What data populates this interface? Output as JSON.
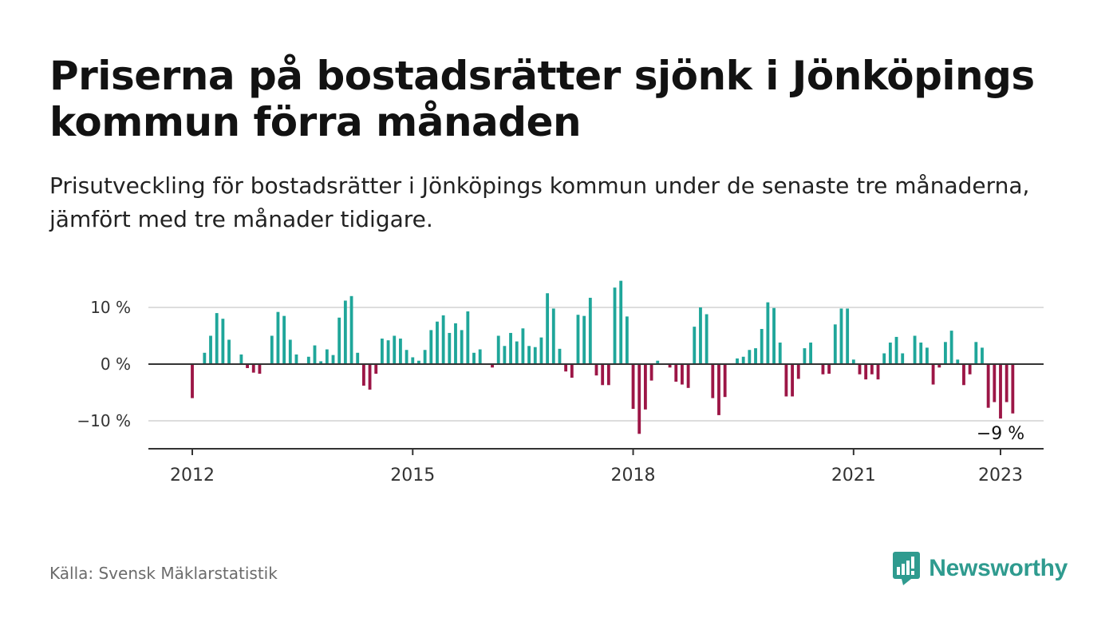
{
  "header": {
    "title": "Priserna på bostadsrätter sjönk i Jönköpings kommun förra månaden",
    "subtitle": "Prisutveckling för bostadsrätter i Jönköpings kommun under de senaste tre månaderna, jämfört med tre månader tidigare."
  },
  "footer": {
    "source": "Källa: Svensk Mäklarstatistik",
    "brand": "Newsworthy",
    "brand_icon": "newsworthy-logo-icon"
  },
  "colors": {
    "positive": "#1fa69a",
    "negative": "#9c1646",
    "grid": "#dddddd",
    "zero_line": "#333333",
    "brand": "#2f9b8f"
  },
  "chart_data": {
    "type": "bar",
    "x_start": "2012-01",
    "x_end": "2023-01",
    "x_ticks": [
      "2012",
      "2015",
      "2018",
      "2021",
      "2023"
    ],
    "y_ticks": [
      {
        "value": 10,
        "label": "10 %"
      },
      {
        "value": 0,
        "label": "0 %"
      },
      {
        "value": -10,
        "label": "−10 %"
      }
    ],
    "ylim": [
      -15,
      15
    ],
    "grid": true,
    "annotation": {
      "label": "−9 %",
      "month": "2023-01"
    },
    "values": [
      -6.0,
      0,
      2.0,
      5.0,
      9.0,
      8.0,
      4.3,
      0,
      1.7,
      -0.7,
      -1.5,
      -1.7,
      0,
      5.0,
      9.2,
      8.5,
      4.3,
      1.7,
      0,
      1.3,
      3.3,
      0.5,
      2.6,
      1.6,
      8.2,
      11.2,
      12.0,
      2.0,
      -3.8,
      -4.5,
      -1.7,
      4.5,
      4.2,
      5.0,
      4.5,
      2.5,
      1.2,
      0.6,
      2.5,
      6.0,
      7.5,
      8.6,
      5.5,
      7.2,
      6.0,
      9.3,
      2.0,
      2.6,
      0,
      -0.6,
      5.0,
      3.2,
      5.5,
      4.0,
      6.3,
      3.2,
      3.0,
      4.7,
      12.5,
      9.8,
      2.7,
      -1.3,
      -2.4,
      8.7,
      8.5,
      11.7,
      -2.0,
      -3.7,
      -3.7,
      13.5,
      14.7,
      8.4,
      -7.9,
      -12.3,
      -8.0,
      -2.9,
      0.6,
      0,
      -0.6,
      -3.1,
      -3.6,
      -4.2,
      6.6,
      10.0,
      8.8,
      -6.0,
      -9.0,
      -5.8,
      0,
      1.0,
      1.3,
      2.5,
      2.8,
      6.2,
      10.9,
      9.9,
      3.8,
      -5.7,
      -5.7,
      -2.6,
      2.8,
      3.8,
      0,
      -1.8,
      -1.7,
      7.0,
      9.8,
      9.8,
      0.8,
      -1.8,
      -2.7,
      -1.8,
      -2.7,
      1.9,
      3.8,
      4.8,
      1.9,
      0,
      5.0,
      3.8,
      2.9,
      -3.6,
      -0.6,
      3.9,
      5.9,
      0.8,
      -3.7,
      -1.8,
      3.9,
      2.9,
      -7.7,
      -6.7,
      -9.6,
      -6.7,
      -8.7
    ]
  }
}
